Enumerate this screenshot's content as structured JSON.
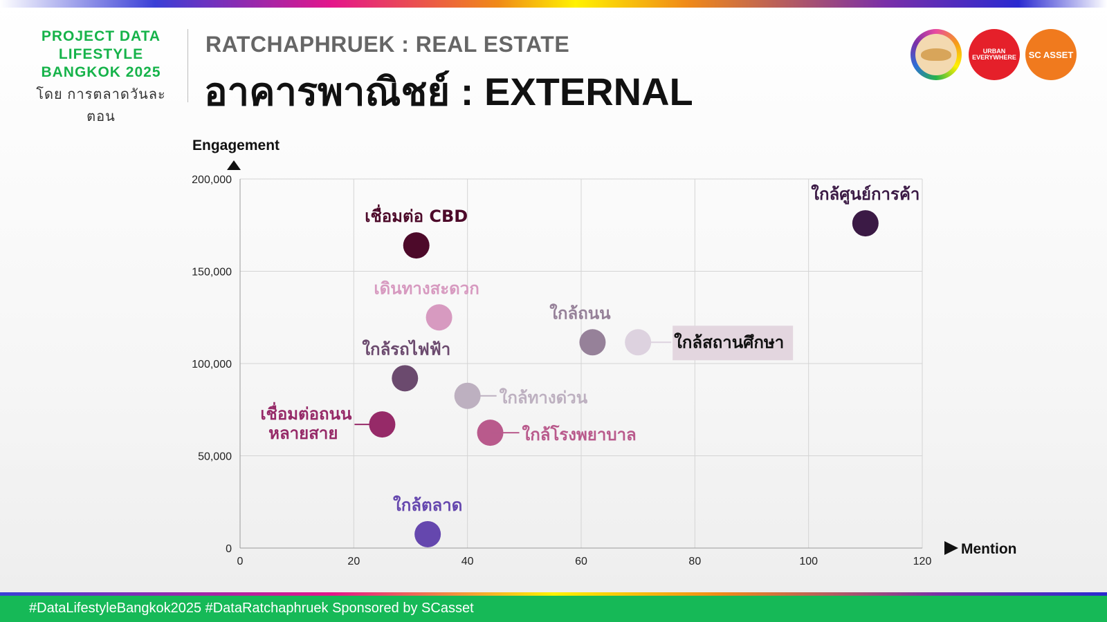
{
  "brand": {
    "line1": "PROJECT DATA",
    "line2": "LIFESTYLE",
    "line3": "BANGKOK 2025",
    "sub": "โดย การตลาดวันละตอน"
  },
  "header": {
    "kicker": "RATCHAPHRUEK : REAL ESTATE",
    "title": "อาคารพาณิชย์ : EXTERNAL"
  },
  "logos": {
    "urban_line1": "URBAN",
    "urban_line2": "EVERYWHERE",
    "sc": "SC ASSET"
  },
  "footer": {
    "text": "#DataLifestyleBangkok2025 #DataRatchaphruek Sponsored by SCasset"
  },
  "chart_data": {
    "type": "scatter",
    "xlabel": "Mention",
    "ylabel": "Engagement",
    "xlim": [
      0,
      120
    ],
    "ylim": [
      0,
      200000
    ],
    "x_ticks": [
      "0",
      "20",
      "40",
      "60",
      "80",
      "100",
      "120"
    ],
    "y_ticks": [
      "0",
      "50,000",
      "100,000",
      "150,000",
      "200,000"
    ],
    "grid": true,
    "points": [
      {
        "label": "ใกล้ศูนย์การค้า",
        "x": 110,
        "y": 176000,
        "color": "#3b1a45"
      },
      {
        "label": "เชื่อมต่อ CBD",
        "x": 31,
        "y": 164000,
        "color": "#4d0a2a"
      },
      {
        "label": "เดินทางสะดวก",
        "x": 35,
        "y": 125000,
        "color": "#d79ac0"
      },
      {
        "label": "ใกล้ถนน",
        "x": 62,
        "y": 111500,
        "color": "#968199"
      },
      {
        "label": "ใกล้สถานศึกษา",
        "x": 70,
        "y": 111500,
        "color": "#ddd2df"
      },
      {
        "label": "ใกล้รถไฟฟ้า",
        "x": 29,
        "y": 92000,
        "color": "#6b4a6e"
      },
      {
        "label": "ใกล้ทางด่วน",
        "x": 40,
        "y": 82500,
        "color": "#bdb0c0"
      },
      {
        "label": "เชื่อมต่อถนนหลายสาย",
        "x": 25,
        "y": 67000,
        "color": "#962a68"
      },
      {
        "label": "ใกล้โรงพยาบาล",
        "x": 44,
        "y": 62500,
        "color": "#b95a8c"
      },
      {
        "label": "ใกล้ตลาด",
        "x": 33,
        "y": 7500,
        "color": "#6547ae"
      }
    ]
  }
}
